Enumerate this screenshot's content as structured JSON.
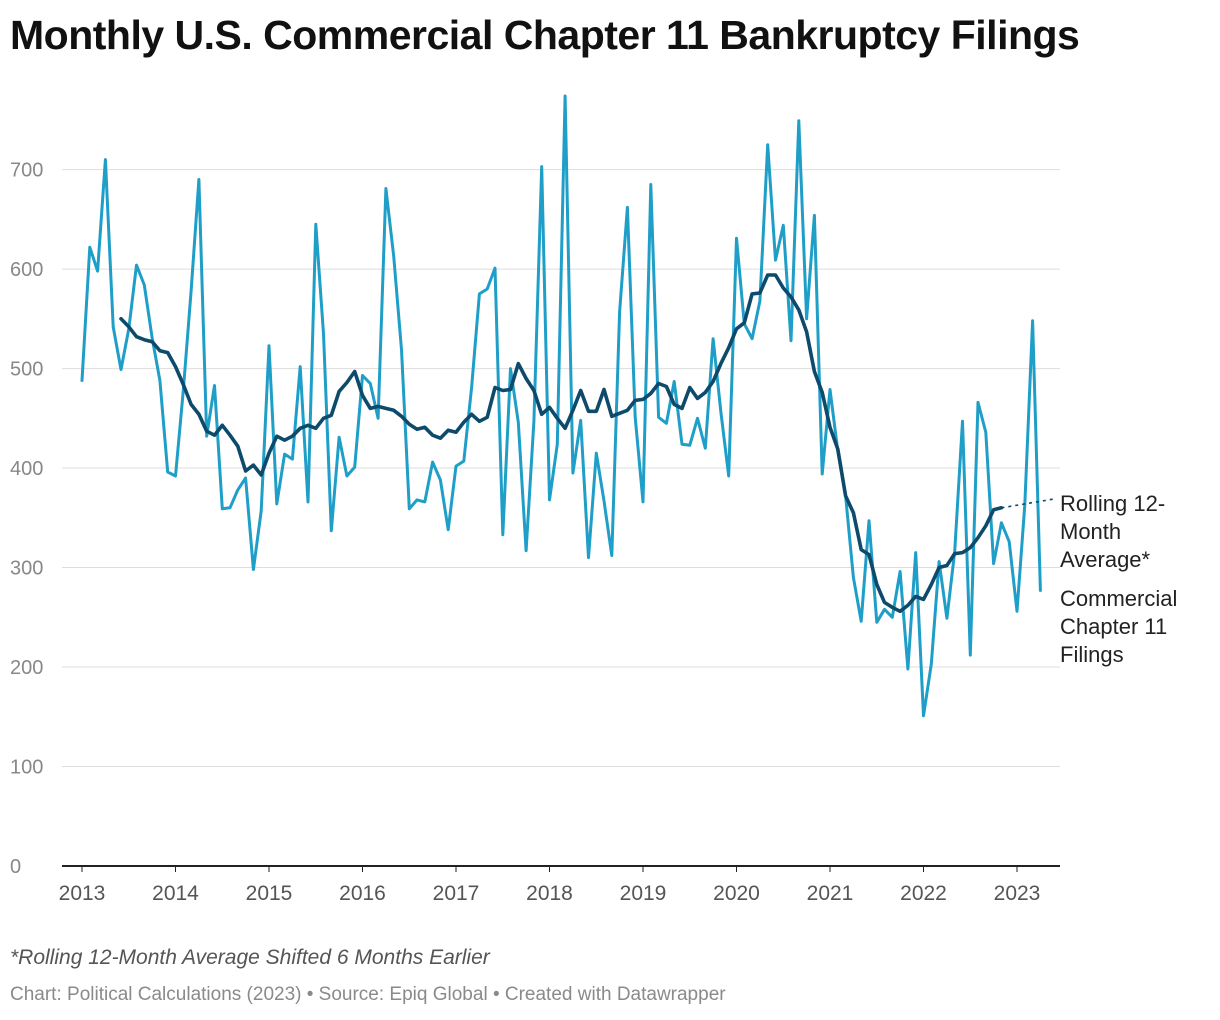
{
  "chart_data": {
    "type": "line",
    "title": "Monthly U.S. Commercial Chapter 11 Bankruptcy Filings",
    "xlabel": "",
    "ylabel": "",
    "ylim": [
      0,
      780
    ],
    "yticks": [
      0,
      100,
      200,
      300,
      400,
      500,
      600,
      700
    ],
    "xticks": [
      2013,
      2014,
      2015,
      2016,
      2017,
      2018,
      2019,
      2020,
      2021,
      2022,
      2023
    ],
    "xlim": [
      2013,
      2023.8
    ],
    "grid": true,
    "legend": "direct labels at line ends, right",
    "series": [
      {
        "name": "Commercial Chapter 11 Filings",
        "color": "#1f9ec8",
        "start": "2013-01",
        "values": [
          488,
          622,
          598,
          710,
          542,
          499,
          540,
          604,
          584,
          531,
          488,
          396,
          392,
          478,
          578,
          690,
          432,
          483,
          359,
          360,
          378,
          390,
          298,
          357,
          523,
          364,
          414,
          409,
          502,
          366,
          645,
          535,
          337,
          431,
          392,
          401,
          493,
          485,
          450,
          681,
          613,
          519,
          359,
          368,
          366,
          406,
          388,
          338,
          402,
          407,
          481,
          575,
          580,
          601,
          333,
          500,
          446,
          317,
          447,
          703,
          368,
          424,
          774,
          395,
          448,
          310,
          415,
          367,
          312,
          557,
          662,
          451,
          366,
          685,
          451,
          445,
          487,
          424,
          423,
          450,
          420,
          530,
          456,
          392,
          631,
          545,
          530,
          568,
          725,
          609,
          644,
          528,
          749,
          550,
          654,
          394,
          479,
          417,
          372,
          290,
          246,
          347,
          245,
          258,
          250,
          296,
          198,
          315,
          151,
          203,
          306,
          249,
          316,
          447,
          212,
          466,
          436,
          304,
          345,
          326,
          256,
          363,
          548,
          277
        ]
      },
      {
        "name": "Rolling 12-Month Average*",
        "color": "#0d4a6b",
        "start": "2013-06",
        "values": [
          550,
          542,
          532,
          529,
          527,
          518,
          516,
          502,
          484,
          464,
          454,
          437,
          433,
          443,
          433,
          422,
          397,
          403,
          393,
          415,
          432,
          428,
          432,
          440,
          443,
          440,
          450,
          453,
          477,
          486,
          497,
          473,
          460,
          462,
          460,
          458,
          452,
          444,
          439,
          441,
          433,
          430,
          438,
          436,
          446,
          454,
          447,
          451,
          481,
          478,
          479,
          505,
          490,
          478,
          454,
          461,
          450,
          440,
          458,
          478,
          457,
          457,
          479,
          452,
          455,
          458,
          468,
          469,
          475,
          485,
          482,
          464,
          460,
          481,
          470,
          476,
          487,
          505,
          521,
          540,
          546,
          575,
          576,
          594,
          594,
          581,
          572,
          559,
          537,
          497,
          476,
          441,
          419,
          372,
          355,
          318,
          313,
          283,
          265,
          260,
          256,
          262,
          271,
          268,
          283,
          300,
          302,
          314,
          315,
          320,
          330,
          342,
          358,
          360
        ]
      }
    ],
    "labels": {
      "avg": [
        "Rolling 12-",
        "Month",
        "Average*"
      ],
      "filings": [
        "Commercial",
        "Chapter 11",
        "Filings"
      ]
    },
    "note": "*Rolling 12-Month Average Shifted 6 Months Earlier",
    "credit": "Chart: Political Calculations (2023) • Source: Epiq Global • Created with Datawrapper"
  }
}
